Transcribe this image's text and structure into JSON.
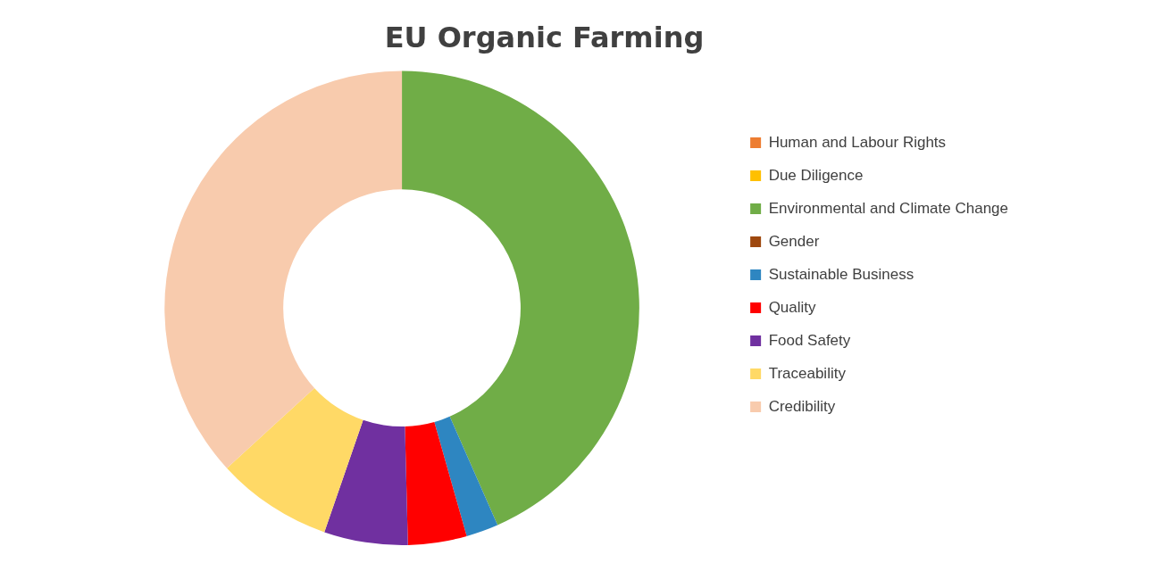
{
  "chart_data": {
    "type": "donut",
    "title": "EU Organic Farming",
    "categories": [
      "Human and Labour Rights",
      "Due Diligence",
      "Environmental and Climate Change",
      "Gender",
      "Sustainable Business",
      "Quality",
      "Food Safety",
      "Traceability",
      "Credibility"
    ],
    "values": [
      0,
      0,
      43.4,
      0,
      2.2,
      4.0,
      5.7,
      7.9,
      36.8
    ],
    "colors": [
      "#ed7d31",
      "#ffc000",
      "#70ad47",
      "#9e480e",
      "#2e86c1",
      "#ff0000",
      "#7030a0",
      "#ffd966",
      "#f8cbad"
    ],
    "legend": "right"
  }
}
